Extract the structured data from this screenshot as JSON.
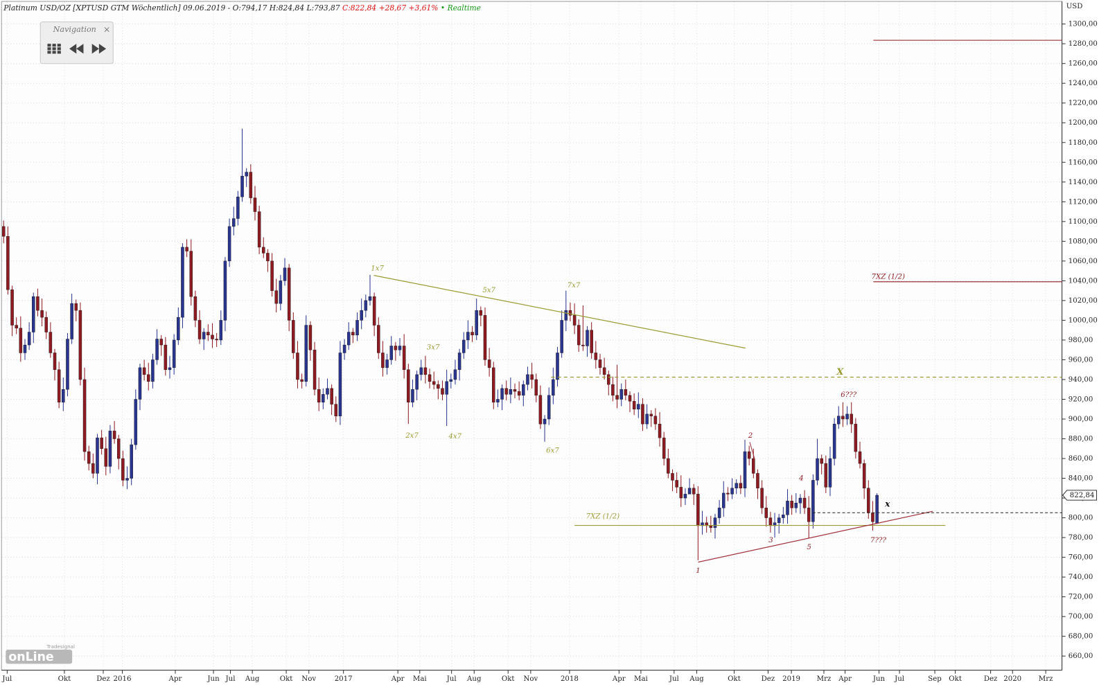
{
  "chart_data": {
    "type": "candlestick",
    "header": {
      "instrument": "Platinum USD/OZ [XPTUSD GTM Wöchentlich] 09.06.2019 - O:794,17 H:824,84 L:793,87",
      "change": "C:822,84 +28,67 +3,61%",
      "status": "• Realtime"
    },
    "navigation": {
      "title": "Navigation",
      "close": "×"
    },
    "logo": {
      "brand": "Tradesignal",
      "name": "onLine"
    },
    "y_unit": "USD",
    "last_price": {
      "value": 822.84,
      "label": "822,84"
    },
    "ylim": [
      660,
      1300
    ],
    "yticks": [
      {
        "value": 660,
        "label": "660,00"
      },
      {
        "value": 680,
        "label": "680,00"
      },
      {
        "value": 700,
        "label": "700,00"
      },
      {
        "value": 720,
        "label": "720,00"
      },
      {
        "value": 740,
        "label": "740,00"
      },
      {
        "value": 760,
        "label": "760,00"
      },
      {
        "value": 780,
        "label": "780,00"
      },
      {
        "value": 800,
        "label": "800,00"
      },
      {
        "value": 820,
        "label": "820,00"
      },
      {
        "value": 840,
        "label": "840,00"
      },
      {
        "value": 860,
        "label": "860,00"
      },
      {
        "value": 880,
        "label": "880,00"
      },
      {
        "value": 900,
        "label": "900,00"
      },
      {
        "value": 920,
        "label": "920,00"
      },
      {
        "value": 940,
        "label": "940,00"
      },
      {
        "value": 960,
        "label": "960,00"
      },
      {
        "value": 980,
        "label": "980,00"
      },
      {
        "value": 1000,
        "label": "1000,00"
      },
      {
        "value": 1020,
        "label": "1020,00"
      },
      {
        "value": 1040,
        "label": "1040,00"
      },
      {
        "value": 1060,
        "label": "1060,00"
      },
      {
        "value": 1080,
        "label": "1080,00"
      },
      {
        "value": 1100,
        "label": "1100,00"
      },
      {
        "value": 1120,
        "label": "1120,00"
      },
      {
        "value": 1140,
        "label": "1140,00"
      },
      {
        "value": 1160,
        "label": "1160,00"
      },
      {
        "value": 1180,
        "label": "1180,00"
      },
      {
        "value": 1200,
        "label": "1200,00"
      },
      {
        "value": 1220,
        "label": "1220,00"
      },
      {
        "value": 1240,
        "label": "1240,00"
      },
      {
        "value": 1260,
        "label": "1260,00"
      },
      {
        "value": 1280,
        "label": "1280,00"
      },
      {
        "value": 1300,
        "label": "1300,00"
      }
    ],
    "x_labels": [
      "Jul",
      "Okt",
      "Dez",
      "2016",
      "Apr",
      "Jun",
      "Jul",
      "Aug",
      "Okt",
      "Nov",
      "2017",
      "Apr",
      "Mai",
      "Jul",
      "Aug",
      "Okt",
      "Nov",
      "2018",
      "Apr",
      "Mai",
      "Jul",
      "Aug",
      "Okt",
      "Dez",
      "2019",
      "Mrz",
      "Apr",
      "Jun",
      "Jul",
      "Sep",
      "Okt",
      "Dez",
      "2020",
      "Mrz"
    ],
    "grid": true,
    "up_color": "#2a3590",
    "down_color": "#8e1b22",
    "annotations": [
      "1x7",
      "3x7",
      "2x7",
      "4x7",
      "5x7",
      "6x7",
      "7x7",
      "X",
      "6???",
      "2",
      "4",
      "3",
      "5",
      "1",
      "7???",
      "x",
      "7XZ (1/2)",
      "7XZ (1/2)"
    ],
    "series": [
      {
        "open": [
          1095,
          1085,
          1031,
          995,
          992,
          967,
          975,
          988,
          1024,
          1010,
          1003,
          988,
          967,
          950,
          917,
          930,
          981,
          1017,
          1010,
          940,
          867,
          855,
          845,
          881,
          870,
          852,
          888,
          880,
          860,
          838,
          840,
          874,
          920,
          952,
          945,
          938,
          960,
          981,
          975,
          950,
          952,
          980,
          1003,
          1074,
          1070,
          1024,
          1000,
          981,
          988,
          985,
          981,
          980,
          1000,
          1060,
          1095,
          1103,
          1125,
          1146,
          1150,
          1124,
          1110,
          1074,
          1068,
          1060,
          1030,
          1017,
          1040,
          1053,
          1000,
          967,
          940,
          938,
          995,
          970,
          930,
          917,
          925,
          931,
          915,
          903,
          967,
          975,
          988,
          985,
          1000,
          1010,
          1020,
          1024,
          995,
          967,
          952,
          960,
          974,
          970,
          974,
          950,
          917,
          930,
          945,
          952,
          945,
          938,
          935,
          931,
          925,
          938,
          940,
          950,
          967,
          980,
          988,
          985,
          1010,
          1005,
          960,
          952,
          917,
          920,
          931,
          925,
          930,
          928,
          924,
          935,
          945,
          940,
          924,
          895,
          900,
          924,
          940,
          967,
          1000,
          1010,
          1005,
          995,
          975,
          974,
          990,
          967,
          960,
          952,
          945,
          935,
          924,
          920,
          930,
          924,
          918,
          910,
          915,
          895,
          905,
          903,
          895,
          881,
          860,
          845,
          838,
          831,
          820,
          824,
          830,
          824,
          792,
          795,
          792,
          790,
          800,
          810,
          825,
          824,
          830,
          835,
          830,
          867,
          860,
          845,
          830,
          810,
          800,
          792,
          795,
          800,
          803,
          817,
          810,
          815,
          820,
          810,
          796,
          838,
          860,
          855,
          831,
          860,
          895,
          903,
          900,
          905,
          895,
          867,
          855,
          830,
          805,
          794.17
        ],
        "high": [
          1101,
          1095,
          1035,
          1003,
          1004,
          981,
          998,
          1028,
          1032,
          1022,
          1009,
          998,
          971,
          958,
          942,
          987,
          1027,
          1021,
          1018,
          952,
          873,
          865,
          885,
          889,
          882,
          894,
          898,
          884,
          868,
          852,
          880,
          930,
          956,
          960,
          957,
          966,
          991,
          985,
          983,
          964,
          986,
          1013,
          1078,
          1082,
          1082,
          1030,
          1010,
          992,
          996,
          997,
          987,
          1010,
          1064,
          1103,
          1115,
          1131,
          1194,
          1154,
          1158,
          1136,
          1116,
          1084,
          1072,
          1068,
          1042,
          1046,
          1063,
          1057,
          1008,
          979,
          946,
          1005,
          999,
          978,
          942,
          931,
          941,
          935,
          923,
          979,
          981,
          998,
          992,
          1008,
          1022,
          1026,
          1046,
          1028,
          1003,
          979,
          966,
          984,
          978,
          982,
          986,
          956,
          940,
          949,
          960,
          964,
          951,
          948,
          939,
          939,
          950,
          946,
          960,
          971,
          988,
          1000,
          994,
          1022,
          1014,
          1013,
          972,
          958,
          930,
          935,
          939,
          942,
          936,
          938,
          939,
          953,
          957,
          946,
          934,
          904,
          932,
          952,
          973,
          1010,
          1030,
          1018,
          1017,
          1001,
          1015,
          994,
          998,
          979,
          966,
          962,
          949,
          943,
          955,
          936,
          940,
          928,
          926,
          927,
          921,
          915,
          909,
          911,
          907,
          887,
          870,
          849,
          846,
          843,
          830,
          840,
          834,
          832,
          807,
          801,
          802,
          804,
          818,
          837,
          831,
          840,
          839,
          843,
          879,
          873,
          870,
          849,
          838,
          822,
          806,
          805,
          804,
          811,
          829,
          823,
          825,
          824,
          828,
          822,
          844,
          880,
          864,
          863,
          872,
          901,
          913,
          917,
          913,
          917,
          901,
          877,
          859,
          838,
          817,
          824.84
        ],
        "low": [
          1078,
          1026,
          984,
          986,
          958,
          960,
          970,
          977,
          1004,
          994,
          981,
          962,
          939,
          911,
          908,
          923,
          976,
          999,
          934,
          858,
          848,
          840,
          834,
          864,
          843,
          845,
          875,
          849,
          832,
          829,
          833,
          869,
          909,
          939,
          929,
          931,
          955,
          964,
          944,
          941,
          945,
          975,
          992,
          1064,
          1015,
          993,
          976,
          970,
          979,
          972,
          973,
          975,
          989,
          1054,
          1086,
          1096,
          1120,
          1135,
          1118,
          1101,
          1067,
          1063,
          1049,
          1024,
          1008,
          1010,
          1035,
          989,
          961,
          931,
          931,
          933,
          959,
          924,
          908,
          910,
          920,
          904,
          897,
          894,
          960,
          970,
          977,
          979,
          991,
          1003,
          1015,
          984,
          961,
          943,
          945,
          955,
          959,
          964,
          941,
          895,
          912,
          919,
          939,
          936,
          931,
          930,
          920,
          919,
          893,
          931,
          935,
          939,
          961,
          971,
          978,
          980,
          994,
          954,
          943,
          910,
          912,
          909,
          919,
          916,
          921,
          919,
          913,
          929,
          931,
          917,
          890,
          877,
          894,
          915,
          933,
          962,
          989,
          999,
          986,
          968,
          969,
          963,
          961,
          951,
          945,
          940,
          924,
          918,
          911,
          913,
          919,
          907,
          904,
          901,
          888,
          890,
          892,
          889,
          872,
          853,
          840,
          827,
          825,
          811,
          813,
          825,
          813,
          757,
          783,
          785,
          785,
          779,
          794,
          801,
          817,
          819,
          824,
          824,
          821,
          853,
          840,
          819,
          804,
          791,
          785,
          780,
          784,
          794,
          794,
          803,
          805,
          804,
          804,
          779,
          789,
          833,
          844,
          825,
          822,
          853,
          890,
          892,
          894,
          886,
          860,
          850,
          819,
          799,
          787,
          793.87
        ],
        "close": [
          1085,
          1031,
          995,
          992,
          967,
          975,
          988,
          1024,
          1010,
          1003,
          988,
          967,
          950,
          917,
          930,
          981,
          1017,
          1010,
          940,
          867,
          855,
          845,
          881,
          870,
          852,
          888,
          880,
          860,
          838,
          840,
          874,
          920,
          952,
          945,
          938,
          960,
          981,
          975,
          950,
          952,
          980,
          1003,
          1074,
          1070,
          1024,
          1000,
          981,
          988,
          985,
          981,
          980,
          1000,
          1060,
          1095,
          1103,
          1125,
          1146,
          1150,
          1124,
          1110,
          1074,
          1068,
          1060,
          1030,
          1017,
          1040,
          1053,
          1000,
          967,
          940,
          938,
          995,
          970,
          930,
          917,
          925,
          931,
          915,
          903,
          967,
          975,
          988,
          985,
          1000,
          1010,
          1020,
          1024,
          995,
          967,
          952,
          960,
          974,
          970,
          974,
          950,
          917,
          930,
          945,
          952,
          945,
          938,
          935,
          931,
          925,
          938,
          940,
          950,
          967,
          980,
          988,
          985,
          1010,
          1005,
          960,
          952,
          917,
          920,
          931,
          925,
          930,
          928,
          924,
          935,
          945,
          940,
          924,
          895,
          900,
          924,
          940,
          967,
          1000,
          1010,
          1005,
          995,
          975,
          974,
          990,
          967,
          960,
          952,
          945,
          935,
          924,
          920,
          930,
          924,
          918,
          910,
          915,
          895,
          905,
          903,
          895,
          881,
          860,
          845,
          838,
          831,
          820,
          824,
          830,
          824,
          792,
          795,
          792,
          790,
          800,
          810,
          825,
          824,
          830,
          835,
          830,
          867,
          860,
          845,
          830,
          810,
          800,
          792,
          795,
          800,
          803,
          817,
          810,
          815,
          820,
          810,
          796,
          838,
          860,
          855,
          831,
          860,
          895,
          903,
          900,
          905,
          895,
          867,
          855,
          830,
          805,
          796,
          822.84
        ]
      }
    ]
  }
}
